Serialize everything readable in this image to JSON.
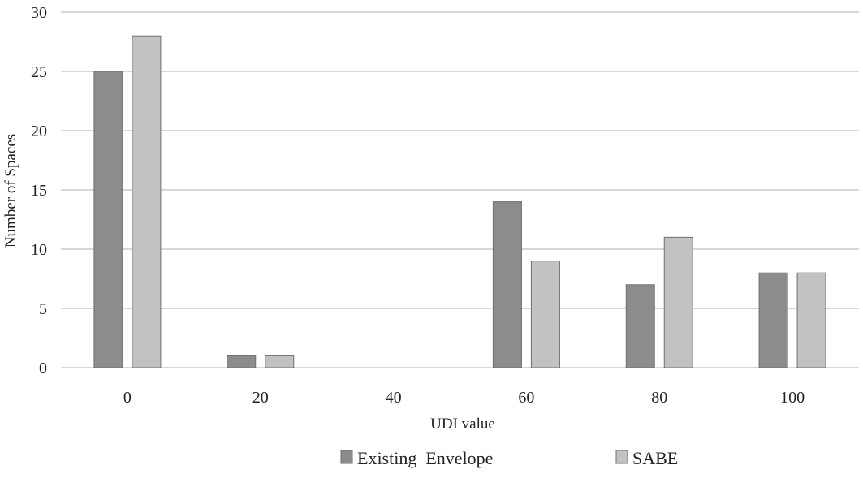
{
  "chart_data": {
    "type": "bar",
    "categories": [
      "0",
      "20",
      "40",
      "60",
      "80",
      "100"
    ],
    "series": [
      {
        "name": "Existing  Envelope",
        "values": [
          25,
          1,
          0,
          14,
          7,
          8
        ],
        "color": "#8c8c8c"
      },
      {
        "name": "SABE",
        "values": [
          28,
          1,
          0,
          9,
          11,
          8
        ],
        "color": "#c2c2c2"
      }
    ],
    "title": "",
    "xlabel": "UDI value",
    "ylabel": "Number of Spaces",
    "ylim": [
      0,
      30
    ],
    "yticks": [
      0,
      5,
      10,
      15,
      20,
      25,
      30
    ],
    "grid": true,
    "legend_position": "bottom",
    "gridline_color": "#bfbfbf",
    "bar_edge_color": "#6f6f6f"
  }
}
